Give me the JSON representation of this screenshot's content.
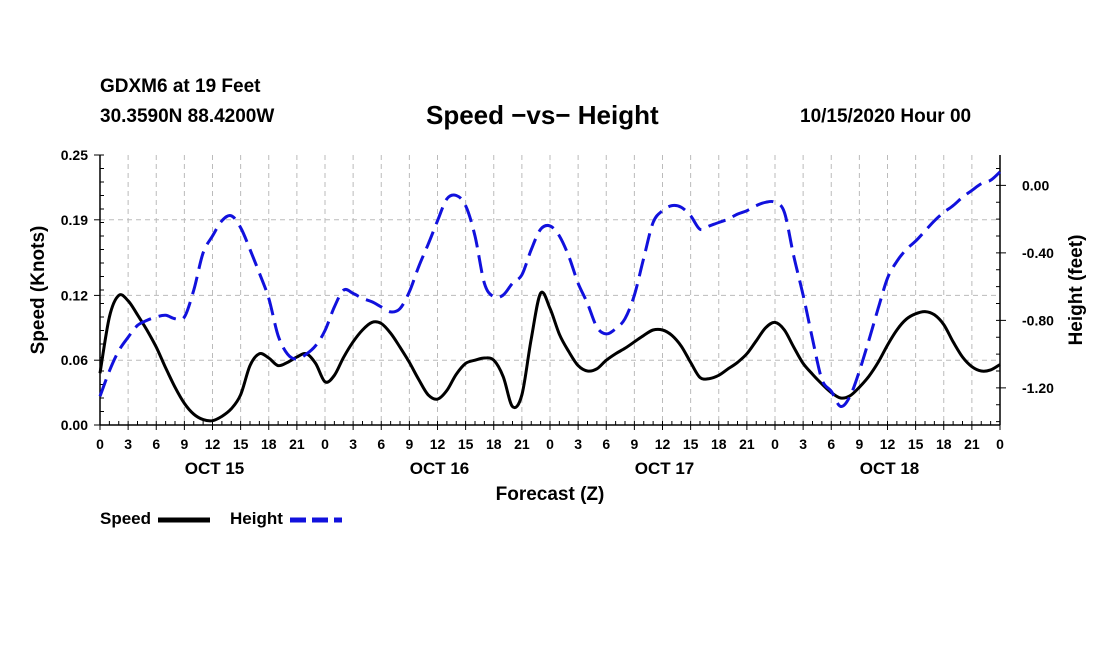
{
  "header": {
    "station": "GDXM6 at 19 Feet",
    "coords": "30.3590N 88.4200W",
    "title": "Speed −vs− Height",
    "datetime": "10/15/2020 Hour 00"
  },
  "legend": {
    "speed_label": "Speed",
    "height_label": "Height"
  },
  "chart_data": {
    "type": "line",
    "xlabel": "Forecast (Z)",
    "ylabel": "Speed (Knots)",
    "y2label": "Height (feet)",
    "xlim": [
      0,
      96
    ],
    "ylim": [
      0,
      0.25
    ],
    "y2lim": [
      -1.42,
      0.18
    ],
    "grid": true,
    "x_ticks": [
      0,
      3,
      6,
      9,
      12,
      15,
      18,
      21,
      24,
      27,
      30,
      33,
      36,
      39,
      42,
      45,
      48,
      51,
      54,
      57,
      60,
      63,
      66,
      69,
      72,
      75,
      78,
      81,
      84,
      87,
      90,
      93,
      96
    ],
    "x_tick_labels": [
      "0",
      "3",
      "6",
      "9",
      "12",
      "15",
      "18",
      "21",
      "0",
      "3",
      "6",
      "9",
      "12",
      "15",
      "18",
      "21",
      "0",
      "3",
      "6",
      "9",
      "12",
      "15",
      "18",
      "21",
      "0",
      "3",
      "6",
      "9",
      "12",
      "15",
      "18",
      "21",
      "0"
    ],
    "day_labels": [
      {
        "x": 12,
        "label": "OCT 15"
      },
      {
        "x": 36,
        "label": "OCT 16"
      },
      {
        "x": 60,
        "label": "OCT 17"
      },
      {
        "x": 84,
        "label": "OCT 18"
      }
    ],
    "y_ticks": [
      0.0,
      0.06,
      0.12,
      0.19,
      0.25
    ],
    "y_tick_labels": [
      "0.00",
      "0.06",
      "0.12",
      "0.19",
      "0.25"
    ],
    "y2_ticks": [
      0.0,
      -0.4,
      -0.8,
      -1.2
    ],
    "y2_tick_labels": [
      "0.00",
      "-0.40",
      "-0.80",
      "-1.20"
    ],
    "series": [
      {
        "name": "Speed",
        "axis": "left",
        "color": "#000000",
        "dash": "solid",
        "x": [
          0,
          1,
          2,
          3,
          4,
          5,
          6,
          7,
          8,
          9,
          10,
          11,
          12,
          13,
          14,
          15,
          16,
          17,
          18,
          19,
          20,
          21,
          22,
          23,
          24,
          25,
          26,
          27,
          28,
          29,
          30,
          31,
          32,
          33,
          34,
          35,
          36,
          37,
          38,
          39,
          40,
          41,
          42,
          43,
          44,
          45,
          46,
          47,
          48,
          49,
          50,
          51,
          52,
          53,
          54,
          55,
          56,
          57,
          58,
          59,
          60,
          61,
          62,
          63,
          64,
          65,
          66,
          67,
          68,
          69,
          70,
          71,
          72,
          73,
          74,
          75,
          76,
          77,
          78,
          79,
          80,
          81,
          82,
          83,
          84,
          85,
          86,
          87,
          88,
          89,
          90,
          91,
          92,
          93,
          94,
          95,
          96
        ],
        "values": [
          0.048,
          0.1,
          0.12,
          0.115,
          0.102,
          0.088,
          0.072,
          0.053,
          0.035,
          0.02,
          0.01,
          0.005,
          0.004,
          0.008,
          0.015,
          0.028,
          0.055,
          0.066,
          0.062,
          0.055,
          0.058,
          0.063,
          0.066,
          0.057,
          0.04,
          0.046,
          0.063,
          0.077,
          0.088,
          0.095,
          0.094,
          0.085,
          0.072,
          0.058,
          0.042,
          0.028,
          0.024,
          0.032,
          0.047,
          0.057,
          0.06,
          0.062,
          0.06,
          0.045,
          0.017,
          0.028,
          0.08,
          0.122,
          0.108,
          0.084,
          0.068,
          0.055,
          0.05,
          0.052,
          0.06,
          0.066,
          0.071,
          0.077,
          0.083,
          0.088,
          0.088,
          0.083,
          0.073,
          0.058,
          0.044,
          0.043,
          0.046,
          0.052,
          0.058,
          0.066,
          0.078,
          0.09,
          0.095,
          0.088,
          0.072,
          0.057,
          0.047,
          0.038,
          0.03,
          0.025,
          0.027,
          0.035,
          0.045,
          0.058,
          0.074,
          0.088,
          0.098,
          0.103,
          0.105,
          0.102,
          0.093,
          0.077,
          0.063,
          0.054,
          0.05,
          0.051,
          0.056
        ]
      },
      {
        "name": "Height",
        "axis": "right",
        "color": "#1111dd",
        "dash": "dashed",
        "x": [
          0,
          1,
          2,
          3,
          4,
          5,
          6,
          7,
          8,
          9,
          10,
          11,
          12,
          13,
          14,
          15,
          16,
          17,
          18,
          19,
          20,
          21,
          22,
          23,
          24,
          25,
          26,
          27,
          28,
          29,
          30,
          31,
          32,
          33,
          34,
          35,
          36,
          37,
          38,
          39,
          40,
          41,
          42,
          43,
          44,
          45,
          46,
          47,
          48,
          49,
          50,
          51,
          52,
          53,
          54,
          55,
          56,
          57,
          58,
          59,
          60,
          61,
          62,
          63,
          64,
          65,
          66,
          67,
          68,
          69,
          70,
          71,
          72,
          73,
          74,
          75,
          76,
          77,
          78,
          79,
          80,
          81,
          82,
          83,
          84,
          85,
          86,
          87,
          88,
          89,
          90,
          91,
          92,
          93,
          94,
          95,
          96
        ],
        "values": [
          -1.25,
          -1.1,
          -0.98,
          -0.9,
          -0.83,
          -0.8,
          -0.78,
          -0.77,
          -0.79,
          -0.78,
          -0.62,
          -0.4,
          -0.3,
          -0.21,
          -0.18,
          -0.25,
          -0.38,
          -0.52,
          -0.67,
          -0.89,
          -1.0,
          -1.03,
          -1.0,
          -0.95,
          -0.86,
          -0.72,
          -0.62,
          -0.64,
          -0.67,
          -0.69,
          -0.72,
          -0.75,
          -0.73,
          -0.63,
          -0.48,
          -0.35,
          -0.21,
          -0.08,
          -0.06,
          -0.12,
          -0.3,
          -0.58,
          -0.66,
          -0.65,
          -0.58,
          -0.53,
          -0.38,
          -0.26,
          -0.24,
          -0.3,
          -0.42,
          -0.58,
          -0.7,
          -0.84,
          -0.88,
          -0.85,
          -0.79,
          -0.65,
          -0.43,
          -0.22,
          -0.15,
          -0.12,
          -0.13,
          -0.18,
          -0.26,
          -0.24,
          -0.22,
          -0.2,
          -0.17,
          -0.15,
          -0.12,
          -0.1,
          -0.1,
          -0.16,
          -0.42,
          -0.65,
          -0.91,
          -1.15,
          -1.22,
          -1.31,
          -1.25,
          -1.1,
          -0.92,
          -0.73,
          -0.55,
          -0.45,
          -0.38,
          -0.33,
          -0.27,
          -0.21,
          -0.16,
          -0.12,
          -0.07,
          -0.03,
          0.01,
          0.03,
          0.08
        ]
      }
    ]
  }
}
